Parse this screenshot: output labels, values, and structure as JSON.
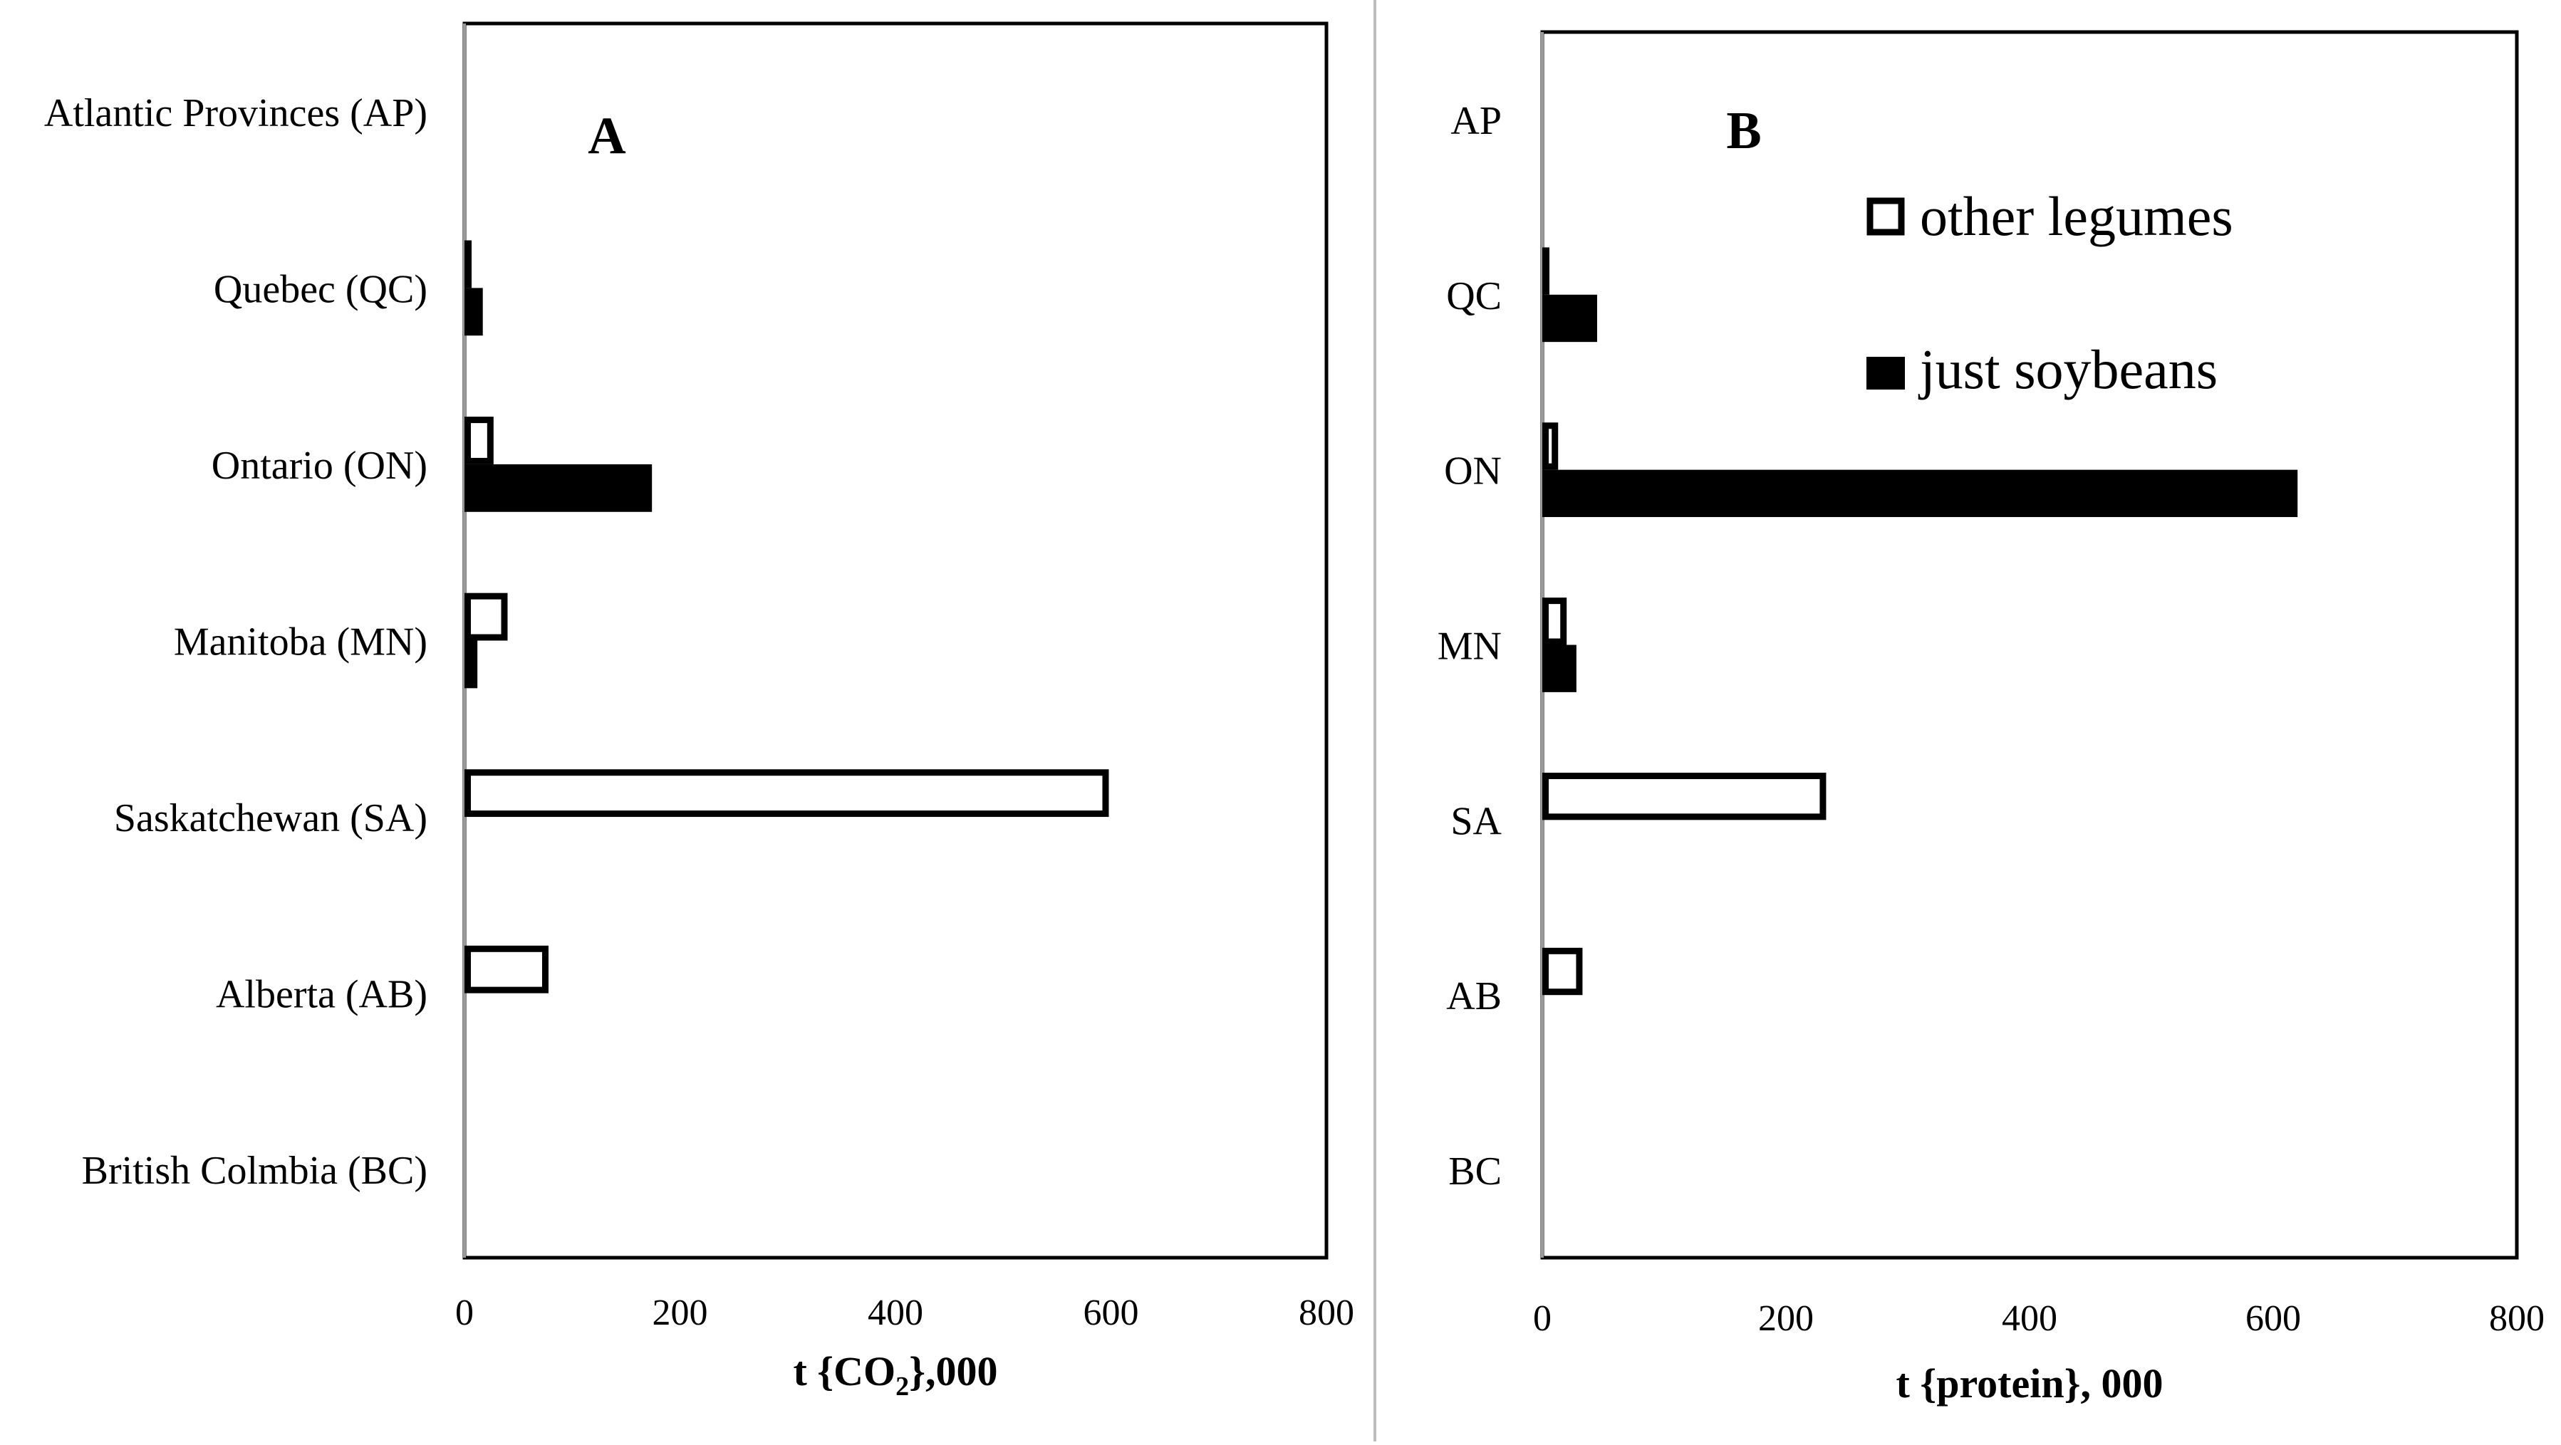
{
  "chart_data": [
    {
      "type": "bar",
      "orientation": "horizontal",
      "panel_title": "A",
      "categories": [
        "Atlantic Provinces (AP)",
        "Quebec (QC)",
        "Ontario (ON)",
        "Manitoba (MN)",
        "Saskatchewan (SA)",
        "Alberta (AB)",
        "British Colmbia (BC)"
      ],
      "series": [
        {
          "name": "other legumes",
          "fill": "#ffffff",
          "stroke": "#000000",
          "values": [
            0,
            2,
            27,
            40,
            598,
            78,
            0
          ]
        },
        {
          "name": "just soybeans",
          "fill": "#000000",
          "stroke": "#000000",
          "values": [
            0,
            17,
            174,
            12,
            0,
            0,
            0
          ]
        }
      ],
      "xlabel_prefix": "t {CO",
      "xlabel_sub": "2",
      "xlabel_suffix": "},000",
      "xlim": [
        0,
        800
      ],
      "xticks": [
        "0",
        "200",
        "400",
        "600",
        "800"
      ],
      "grid": false
    },
    {
      "type": "bar",
      "orientation": "horizontal",
      "panel_title": "B",
      "categories": [
        "AP",
        "QC",
        "ON",
        "MN",
        "SA",
        "AB",
        "BC"
      ],
      "series": [
        {
          "name": "other legumes",
          "fill": "#ffffff",
          "stroke": "#000000",
          "values": [
            0,
            3,
            13,
            20,
            233,
            33,
            0
          ]
        },
        {
          "name": "just soybeans",
          "fill": "#000000",
          "stroke": "#000000",
          "values": [
            0,
            45,
            620,
            28,
            0,
            0,
            0
          ]
        }
      ],
      "xlabel": "t {protein}, 000",
      "xlim": [
        0,
        800
      ],
      "xticks": [
        "0",
        "200",
        "400",
        "600",
        "800"
      ],
      "legend_position": "top-right",
      "grid": false
    }
  ]
}
